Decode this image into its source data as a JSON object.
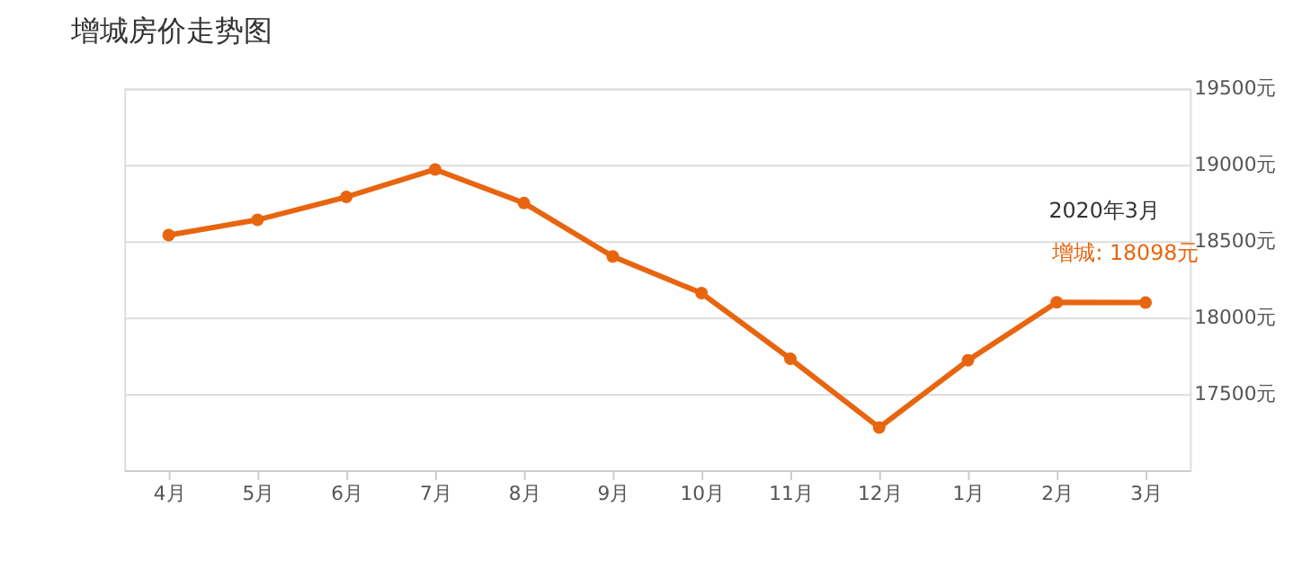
{
  "chart_data": {
    "type": "line",
    "title": "增城房价走势图",
    "categories": [
      "4月",
      "5月",
      "6月",
      "7月",
      "8月",
      "9月",
      "10月",
      "11月",
      "12月",
      "1月",
      "2月",
      "3月"
    ],
    "series": [
      {
        "color": "#e8650f",
        "values": [
          18540,
          18640,
          18790,
          18970,
          18750,
          18400,
          18160,
          17730,
          17280,
          17720,
          18100,
          18098
        ]
      }
    ],
    "ylim": [
      17000,
      19500
    ],
    "yticks": [
      {
        "value": 17000,
        "label": null
      },
      {
        "value": 17500,
        "label": "17500元"
      },
      {
        "value": 18000,
        "label": "18000元"
      },
      {
        "value": 18500,
        "label": "18500元"
      },
      {
        "value": 19000,
        "label": "19000元"
      },
      {
        "value": 19500,
        "label": "19500元"
      }
    ],
    "annotations": [
      "2020年3月",
      {
        "text": "增城:  18098元",
        "x": "3月",
        "y": 18098
      }
    ],
    "grid": "y",
    "marker": "circle",
    "line_style": "solid"
  }
}
